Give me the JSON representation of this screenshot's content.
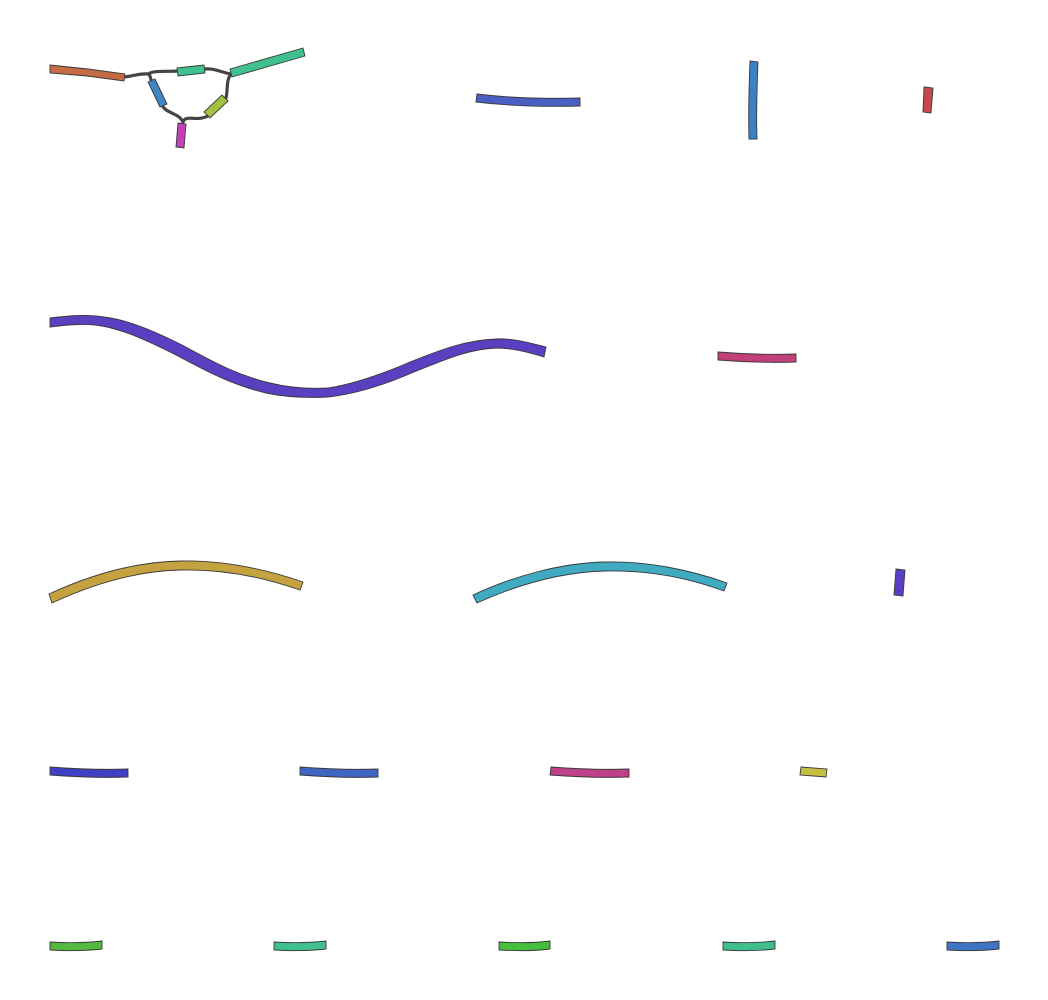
{
  "diagram": {
    "kind": "assembly-graph",
    "background": "#ffffff",
    "link_color": "#444444",
    "outline_color": "#3a3a3a",
    "components": [
      {
        "id": "graph-1",
        "nodes": [
          "node-1",
          "node-2",
          "node-3",
          "node-4",
          "node-5",
          "node-6"
        ]
      },
      {
        "id": "contig-1",
        "color": "#4a5fc4"
      },
      {
        "id": "contig-2",
        "color": "#3b82c4"
      },
      {
        "id": "contig-3",
        "color": "#c44a4a"
      },
      {
        "id": "contig-4",
        "color": "#5a3fc0"
      },
      {
        "id": "contig-5",
        "color": "#c2407a"
      },
      {
        "id": "contig-6",
        "color": "#c4a23f"
      },
      {
        "id": "contig-7",
        "color": "#3faac0"
      },
      {
        "id": "contig-8",
        "color": "#5a3fc4"
      },
      {
        "id": "contig-9",
        "color": "#4040c4"
      },
      {
        "id": "contig-10",
        "color": "#4066c4"
      },
      {
        "id": "contig-11",
        "color": "#c0408a"
      },
      {
        "id": "contig-12",
        "color": "#c4c040"
      },
      {
        "id": "contig-13",
        "color": "#55b840"
      },
      {
        "id": "contig-14",
        "color": "#3fc08e"
      },
      {
        "id": "contig-15",
        "color": "#46bf3f"
      },
      {
        "id": "contig-16",
        "color": "#3fc08a"
      },
      {
        "id": "contig-17",
        "color": "#3f74c4"
      }
    ],
    "node_colors": {
      "node-1": "#c46a45",
      "node-2": "#3fc08e",
      "node-3": "#3fc08e",
      "node-4": "#3f86c4",
      "node-5": "#a3c040",
      "node-6": "#c440b8"
    }
  }
}
